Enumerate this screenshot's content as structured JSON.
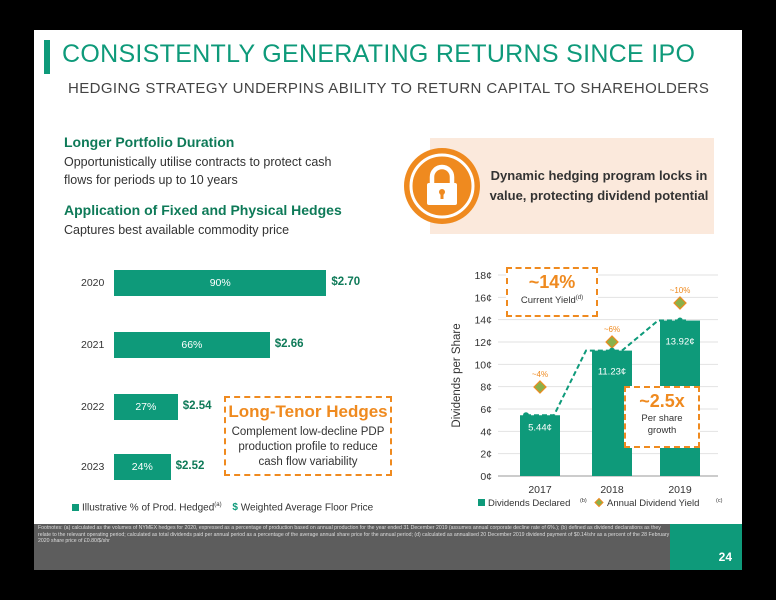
{
  "header": {
    "title": "CONSISTENTLY GENERATING RETURNS SINCE IPO",
    "subtitle": "HEDGING STRATEGY UNDERPINS ABILITY TO RETURN CAPITAL TO SHAREHOLDERS"
  },
  "points": [
    {
      "heading": "Longer Portfolio Duration",
      "lines": [
        "Opportunistically utilise contracts to protect cash",
        "flows for periods up to 10 years"
      ]
    },
    {
      "heading": "Application of Fixed and Physical Hedges",
      "lines": [
        "Captures best available commodity price"
      ]
    }
  ],
  "callout": {
    "icon": "lock-icon",
    "lines": [
      "Dynamic hedging program locks in",
      "value, protecting dividend potential"
    ]
  },
  "hedges": {
    "title": "Long-Tenor Hedges",
    "lines": [
      "Complement low-decline PDP",
      "production profile to reduce",
      "cash flow variability"
    ],
    "legend_bar": "Illustrative % of Prod. Hedged",
    "legend_bar_sup": "(a)",
    "legend_dollar": "$",
    "legend_price": "Weighted Average Floor Price"
  },
  "dividend_boxes": {
    "yield_value": "~14%",
    "yield_label": "Current Yield",
    "yield_sup": "(d)",
    "growth_value": "~2.5x",
    "growth_lines": [
      "Per share",
      "growth"
    ]
  },
  "chart_data": [
    {
      "type": "bar",
      "orientation": "horizontal",
      "categories": [
        "2020",
        "2021",
        "2022",
        "2023"
      ],
      "series": [
        {
          "name": "Illustrative % of Prod. Hedged",
          "values": [
            90,
            66,
            27,
            24
          ]
        }
      ],
      "value_labels": [
        "90%",
        "66%",
        "27%",
        "24%"
      ],
      "floor_prices": [
        "$2.70",
        "$2.66",
        "$2.54",
        "$2.52"
      ],
      "xlim": [
        0,
        100
      ]
    },
    {
      "type": "bar",
      "categories": [
        "2017",
        "2018",
        "2019"
      ],
      "series": [
        {
          "name": "Dividends Declared",
          "values": [
            5.44,
            11.23,
            13.92
          ]
        },
        {
          "name": "Annual Dividend Yield",
          "values": [
            4,
            6,
            10
          ]
        }
      ],
      "value_labels": [
        "5.44¢",
        "11.23¢",
        "13.92¢"
      ],
      "yield_labels": [
        "~4%",
        "~6%",
        "~10%"
      ],
      "ylabel": "Dividends per Share",
      "ylim": [
        0,
        18
      ],
      "yticks": [
        "0¢",
        "2¢",
        "4¢",
        "6¢",
        "8¢",
        "10¢",
        "12¢",
        "14¢",
        "16¢",
        "18¢"
      ],
      "legend": [
        "Dividends Declared",
        "Annual Dividend Yield"
      ],
      "legend_sups": [
        "(b)",
        "(c)"
      ]
    }
  ],
  "footer": {
    "notes": "Footnotes: (a) calculated as the volumes of NYMEX hedges for 2020, expressed as a percentage of production based on annual production for the year ended 31 December 2019 (assumes annual corporate decline rate of 6%.); (b) defined as dividend declarations as they relate to the relevant operating period; calculated as total dividends paid per annual period as a percentage of the average annual share price for the annual period; (d) calculated as annualised 20 December 2019 dividend payment of $0.14/shr as a percent of the 28 February 2020 share price of £0.80/$/shr",
    "page": "24"
  },
  "colors": {
    "accent": "#0e9a7a",
    "dark_green": "#0e7a58",
    "orange": "#ef8a1f",
    "callout_bg": "#fbe9dc",
    "footer": "#5d5d5d"
  }
}
